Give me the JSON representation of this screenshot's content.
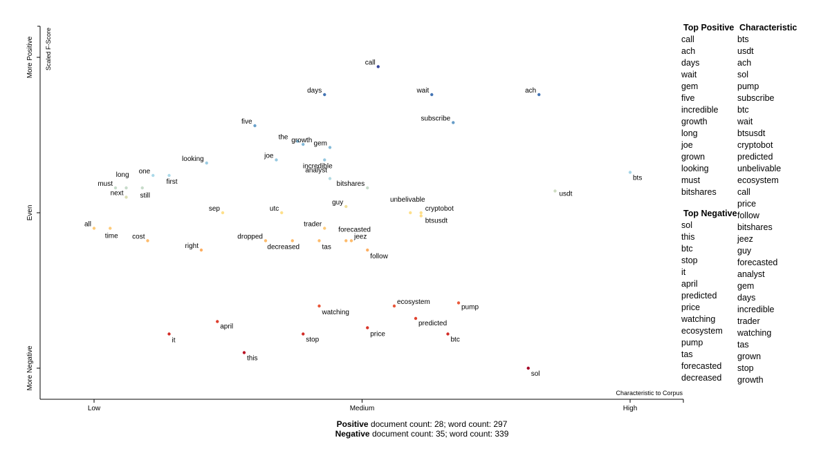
{
  "chart_data": {
    "type": "scatter",
    "title": "",
    "xlabel": "Characteristic to Corpus",
    "ylabel": "Scaled F-Score",
    "x_ticks": [
      "Low",
      "Medium",
      "High"
    ],
    "y_ticks": [
      "More Negative",
      "Even",
      "More Positive"
    ],
    "xlim": [
      0,
      1
    ],
    "ylim": [
      0,
      1
    ],
    "colors": {
      "negative": "#a50026",
      "even": "#fee08b",
      "positive": "#313695"
    },
    "points": [
      {
        "term": "call",
        "x": 0.53,
        "y": 0.97
      },
      {
        "term": "days",
        "x": 0.43,
        "y": 0.88
      },
      {
        "term": "wait",
        "x": 0.63,
        "y": 0.88
      },
      {
        "term": "ach",
        "x": 0.83,
        "y": 0.88
      },
      {
        "term": "five",
        "x": 0.3,
        "y": 0.78
      },
      {
        "term": "subscribe",
        "x": 0.67,
        "y": 0.79
      },
      {
        "term": "the",
        "x": 0.38,
        "y": 0.73
      },
      {
        "term": "gem",
        "x": 0.44,
        "y": 0.71
      },
      {
        "term": "growth",
        "x": 0.39,
        "y": 0.72
      },
      {
        "term": "looking",
        "x": 0.21,
        "y": 0.66
      },
      {
        "term": "joe",
        "x": 0.34,
        "y": 0.67
      },
      {
        "term": "incredible",
        "x": 0.43,
        "y": 0.67
      },
      {
        "term": "analyst",
        "x": 0.44,
        "y": 0.61
      },
      {
        "term": "bitshares",
        "x": 0.51,
        "y": 0.58
      },
      {
        "term": "one",
        "x": 0.11,
        "y": 0.62
      },
      {
        "term": "first",
        "x": 0.14,
        "y": 0.62
      },
      {
        "term": "long",
        "x": 0.06,
        "y": 0.58
      },
      {
        "term": "must",
        "x": 0.04,
        "y": 0.58
      },
      {
        "term": "next",
        "x": 0.06,
        "y": 0.55
      },
      {
        "term": "still",
        "x": 0.09,
        "y": 0.58
      },
      {
        "term": "bts",
        "x": 1.0,
        "y": 0.63
      },
      {
        "term": "usdt",
        "x": 0.86,
        "y": 0.57
      },
      {
        "term": "guy",
        "x": 0.47,
        "y": 0.52
      },
      {
        "term": "unbelivable",
        "x": 0.59,
        "y": 0.5
      },
      {
        "term": "cryptobot",
        "x": 0.61,
        "y": 0.5
      },
      {
        "term": "btsusdt",
        "x": 0.61,
        "y": 0.49
      },
      {
        "term": "sep",
        "x": 0.24,
        "y": 0.5
      },
      {
        "term": "utc",
        "x": 0.35,
        "y": 0.5
      },
      {
        "term": "all",
        "x": 0.0,
        "y": 0.45
      },
      {
        "term": "time",
        "x": 0.03,
        "y": 0.45
      },
      {
        "term": "cost",
        "x": 0.1,
        "y": 0.41
      },
      {
        "term": "trader",
        "x": 0.43,
        "y": 0.45
      },
      {
        "term": "forecasted",
        "x": 0.47,
        "y": 0.41
      },
      {
        "term": "jeez",
        "x": 0.48,
        "y": 0.41
      },
      {
        "term": "follow",
        "x": 0.51,
        "y": 0.38
      },
      {
        "term": "dropped",
        "x": 0.32,
        "y": 0.41
      },
      {
        "term": "decreased",
        "x": 0.37,
        "y": 0.41
      },
      {
        "term": "tas",
        "x": 0.42,
        "y": 0.41
      },
      {
        "term": "right",
        "x": 0.2,
        "y": 0.38
      },
      {
        "term": "watching",
        "x": 0.42,
        "y": 0.2
      },
      {
        "term": "ecosystem",
        "x": 0.56,
        "y": 0.2
      },
      {
        "term": "pump",
        "x": 0.68,
        "y": 0.21
      },
      {
        "term": "predicted",
        "x": 0.6,
        "y": 0.16
      },
      {
        "term": "price",
        "x": 0.51,
        "y": 0.13
      },
      {
        "term": "btc",
        "x": 0.66,
        "y": 0.11
      },
      {
        "term": "april",
        "x": 0.23,
        "y": 0.15
      },
      {
        "term": "it",
        "x": 0.14,
        "y": 0.11
      },
      {
        "term": "stop",
        "x": 0.39,
        "y": 0.11
      },
      {
        "term": "this",
        "x": 0.28,
        "y": 0.05
      },
      {
        "term": "sol",
        "x": 0.81,
        "y": 0.0
      }
    ]
  },
  "lists": {
    "top_positive": {
      "title": "Top Positive",
      "items": [
        "call",
        "ach",
        "days",
        "wait",
        "gem",
        "five",
        "incredible",
        "growth",
        "long",
        "joe",
        "grown",
        "looking",
        "must",
        "bitshares"
      ]
    },
    "top_negative": {
      "title": "Top Negative",
      "items": [
        "sol",
        "this",
        "btc",
        "stop",
        "it",
        "april",
        "predicted",
        "price",
        "watching",
        "ecosystem",
        "pump",
        "tas",
        "forecasted",
        "decreased"
      ]
    },
    "characteristic": {
      "title": "Characteristic",
      "items": [
        "bts",
        "usdt",
        "ach",
        "sol",
        "pump",
        "subscribe",
        "btc",
        "wait",
        "btsusdt",
        "cryptobot",
        "predicted",
        "unbelivable",
        "ecosystem",
        "call",
        "price",
        "follow",
        "bitshares",
        "jeez",
        "guy",
        "forecasted",
        "analyst",
        "gem",
        "days",
        "incredible",
        "trader",
        "watching",
        "tas",
        "grown",
        "stop",
        "growth"
      ]
    }
  },
  "counts": {
    "positive_label": "Positive",
    "positive_text": " document count: 28; word count: 297",
    "negative_label": "Negative",
    "negative_text": " document count: 35; word count: 339"
  }
}
